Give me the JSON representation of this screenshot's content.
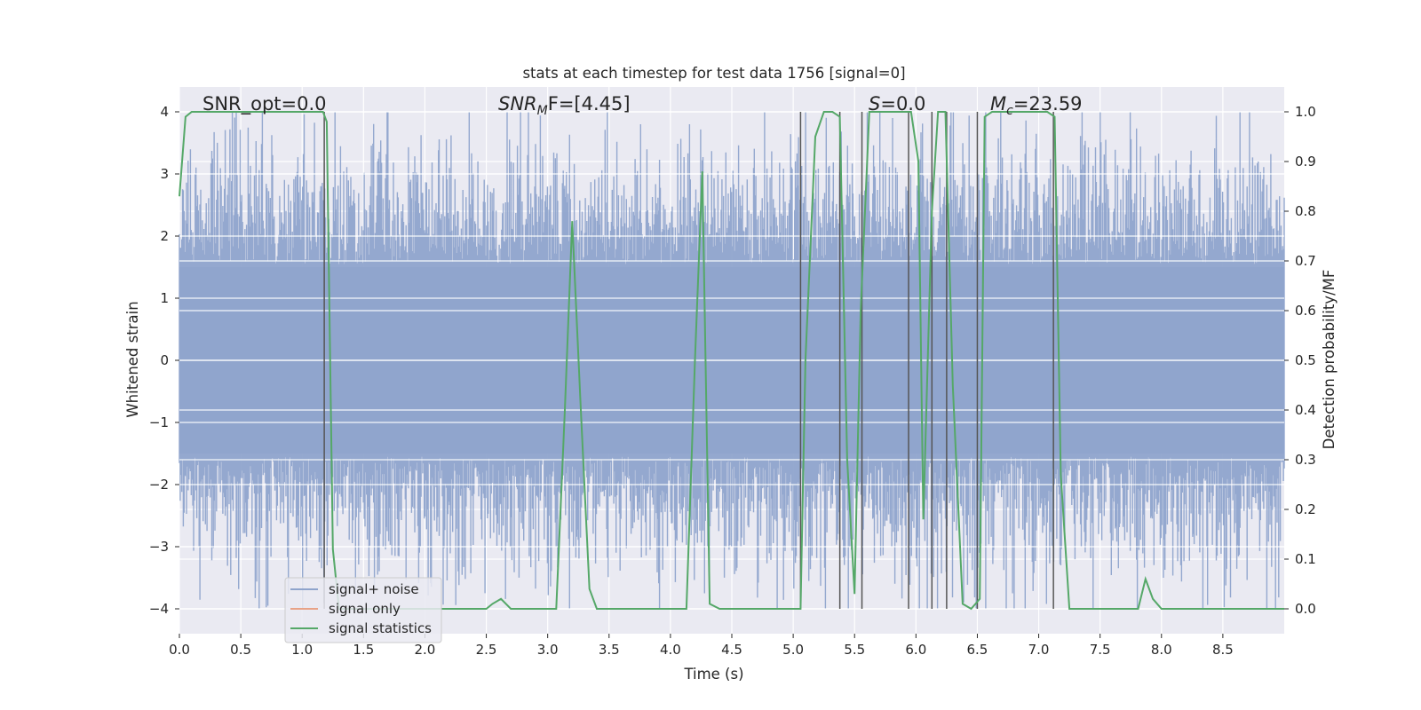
{
  "chart_data": {
    "type": "line",
    "title": "stats at each timestep for test data 1756 [signal=0]",
    "xlabel": "Time (s)",
    "ylabel_left": "Whitened strain",
    "ylabel_right": "Detection probability/MF",
    "xlim": [
      0,
      9.0
    ],
    "ylim_left": [
      -4.4,
      4.4
    ],
    "ylim_right": [
      -0.05,
      1.05
    ],
    "x_ticks": [
      0.0,
      0.5,
      1.0,
      1.5,
      2.0,
      2.5,
      3.0,
      3.5,
      4.0,
      4.5,
      5.0,
      5.5,
      6.0,
      6.5,
      7.0,
      7.5,
      8.0,
      8.5
    ],
    "x_tick_labels": [
      "0.0",
      "0.5",
      "1.0",
      "1.5",
      "2.0",
      "2.5",
      "3.0",
      "3.5",
      "4.0",
      "4.5",
      "5.0",
      "5.5",
      "6.0",
      "6.5",
      "7.0",
      "7.5",
      "8.0",
      "8.5"
    ],
    "y_left_ticks": [
      -4,
      -3,
      -2,
      -1,
      0,
      1,
      2,
      3,
      4
    ],
    "y_left_tick_labels": [
      "−4",
      "−3",
      "−2",
      "−1",
      "0",
      "1",
      "2",
      "3",
      "4"
    ],
    "y_right_ticks": [
      0.0,
      0.1,
      0.2,
      0.3,
      0.4,
      0.5,
      0.6,
      0.7,
      0.8,
      0.9,
      1.0
    ],
    "y_right_tick_labels": [
      "0.0",
      "0.1",
      "0.2",
      "0.3",
      "0.4",
      "0.5",
      "0.6",
      "0.7",
      "0.8",
      "0.9",
      "1.0"
    ],
    "grid": true,
    "legend": {
      "placement": "lower-left",
      "entries": [
        {
          "label": "signal+ noise",
          "color": "#8fa4cc"
        },
        {
          "label": "signal only",
          "color": "#e8a387"
        },
        {
          "label": "signal statistics",
          "color": "#55a868"
        }
      ]
    },
    "annotations": {
      "snr_opt": "SNR_opt=0.0",
      "snr_mf_main": "SNR",
      "snr_mf_sub": "M",
      "snr_mf_rest": "F=[4.45]",
      "s_main": "S",
      "s_rest": "=0.0",
      "mc_main": "M",
      "mc_sub": "c",
      "mc_rest": "=23.59"
    },
    "series": [
      {
        "name": "signal+ noise",
        "axis": "left",
        "color": "#8fa4cc",
        "description_values": "whitened strain noise, amplitude roughly within ±2.6 with spikes up to about ±4 across 0–9 s"
      },
      {
        "name": "signal statistics",
        "axis": "right",
        "color": "#55a868",
        "x": [
          0.0,
          0.05,
          0.1,
          0.2,
          0.3,
          0.4,
          0.5,
          0.6,
          0.7,
          0.8,
          0.9,
          1.0,
          1.1,
          1.17,
          1.2,
          1.25,
          1.3,
          1.4,
          1.5,
          1.6,
          1.7,
          1.8,
          1.9,
          2.0,
          2.1,
          2.2,
          2.3,
          2.4,
          2.5,
          2.55,
          2.62,
          2.7,
          2.8,
          2.9,
          3.0,
          3.07,
          3.14,
          3.2,
          3.27,
          3.34,
          3.4,
          3.5,
          3.6,
          3.7,
          3.8,
          3.9,
          4.0,
          4.13,
          4.2,
          4.26,
          4.32,
          4.4,
          4.5,
          4.6,
          4.7,
          4.8,
          4.9,
          5.0,
          5.06,
          5.1,
          5.18,
          5.25,
          5.32,
          5.38,
          5.44,
          5.5,
          5.55,
          5.62,
          5.7,
          5.8,
          5.9,
          5.96,
          6.02,
          6.06,
          6.13,
          6.18,
          6.24,
          6.3,
          6.38,
          6.45,
          6.52,
          6.56,
          6.62,
          6.7,
          6.8,
          6.9,
          7.0,
          7.07,
          7.13,
          7.18,
          7.25,
          7.3,
          7.4,
          7.5,
          7.6,
          7.7,
          7.81,
          7.87,
          7.93,
          8.0,
          8.1,
          8.2,
          8.3,
          8.4,
          8.5,
          8.6,
          8.7,
          8.8,
          8.9,
          9.0
        ],
        "y": [
          0.83,
          0.99,
          1.0,
          1.0,
          1.0,
          1.0,
          1.0,
          1.0,
          1.0,
          1.0,
          1.0,
          1.0,
          1.0,
          1.0,
          0.98,
          0.12,
          0.0,
          0.0,
          0.0,
          0.0,
          0.0,
          0.0,
          0.0,
          0.0,
          0.0,
          0.0,
          0.0,
          0.0,
          0.0,
          0.01,
          0.02,
          0.0,
          0.0,
          0.0,
          0.0,
          0.0,
          0.4,
          0.78,
          0.4,
          0.04,
          0.0,
          0.0,
          0.0,
          0.0,
          0.0,
          0.0,
          0.0,
          0.0,
          0.5,
          0.88,
          0.01,
          0.0,
          0.0,
          0.0,
          0.0,
          0.0,
          0.0,
          0.0,
          0.0,
          0.5,
          0.95,
          1.0,
          1.0,
          0.99,
          0.3,
          0.03,
          0.6,
          1.0,
          1.0,
          1.0,
          1.0,
          1.0,
          0.9,
          0.18,
          0.8,
          1.0,
          1.0,
          0.45,
          0.01,
          0.0,
          0.02,
          0.99,
          1.0,
          1.0,
          1.0,
          1.0,
          1.0,
          1.0,
          0.99,
          0.27,
          0.0,
          0.0,
          0.0,
          0.0,
          0.0,
          0.0,
          0.0,
          0.06,
          0.02,
          0.0,
          0.0,
          0.0,
          0.0,
          0.0,
          0.0,
          0.0,
          0.0,
          0.0,
          0.0,
          0.0
        ]
      }
    ],
    "vertical_lines_x": [
      1.18,
      5.06,
      5.38,
      5.56,
      5.94,
      6.13,
      6.25,
      6.5,
      7.12
    ]
  }
}
